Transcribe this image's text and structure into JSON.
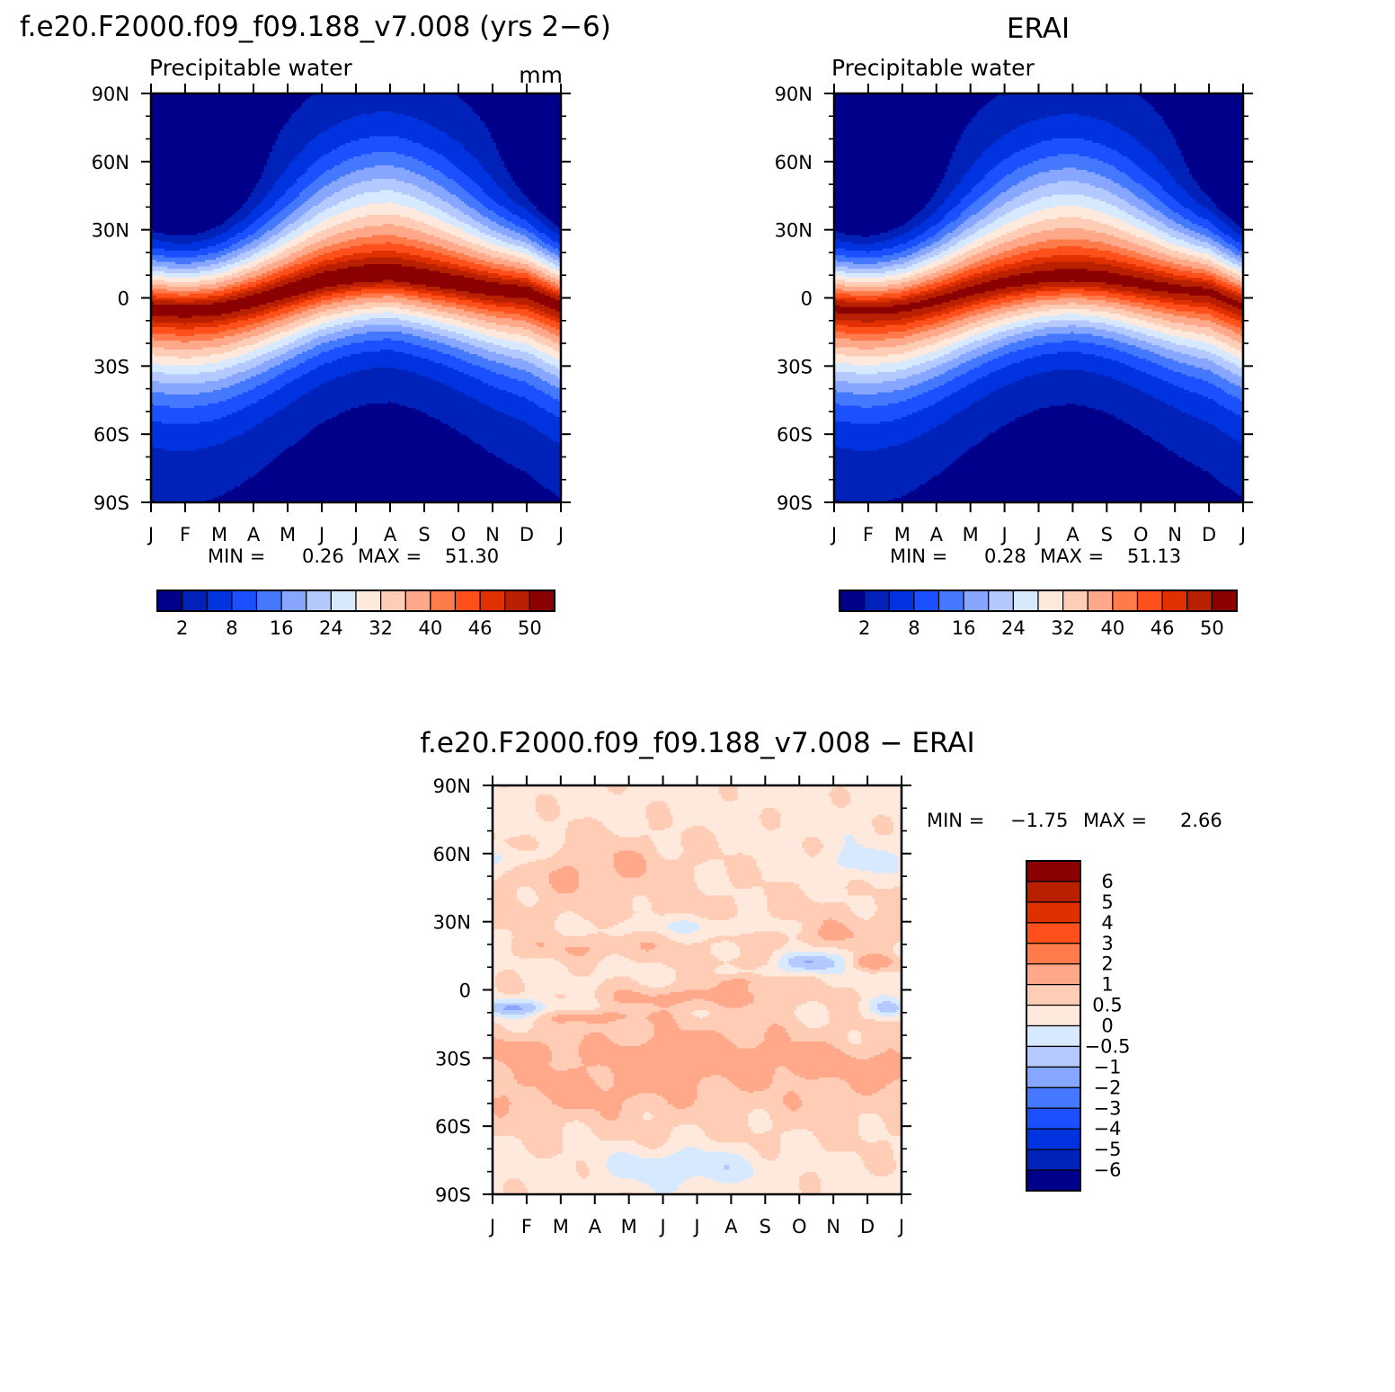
{
  "chart_data": [
    {
      "type": "heatmap",
      "title": "f.e20.F2000.f09_f09.188_v7.008 (yrs 2−6)",
      "subtitle": "Precipitable water",
      "units": "mm",
      "x_tick_labels": [
        "J",
        "F",
        "M",
        "A",
        "M",
        "J",
        "J",
        "A",
        "S",
        "O",
        "N",
        "D",
        "J"
      ],
      "y_tick_labels": [
        "90N",
        "60N",
        "30N",
        "0",
        "30S",
        "60S",
        "90S"
      ],
      "y_range": [
        -90,
        90
      ],
      "min_label": "MIN =",
      "min_value": "0.26",
      "max_label": "MAX =",
      "max_value": "51.30",
      "colorbar_labels": [
        "2",
        "8",
        "16",
        "24",
        "32",
        "40",
        "46",
        "50"
      ],
      "colorbar_colors": [
        "#00008b",
        "#0022b8",
        "#0033e0",
        "#1a50ff",
        "#4478ff",
        "#86a6ff",
        "#b3c9ff",
        "#d6e9ff",
        "#ffe9dc",
        "#ffcdb6",
        "#ffa88a",
        "#ff7b4c",
        "#ff4f1a",
        "#e03000",
        "#b82000",
        "#8b0000"
      ],
      "itcz_lat": [
        -4,
        -5,
        -4,
        -1,
        3,
        7,
        9,
        10,
        8,
        6,
        4,
        3,
        -3
      ]
    },
    {
      "type": "heatmap",
      "title": "ERAI",
      "subtitle": "Precipitable water",
      "x_tick_labels": [
        "J",
        "F",
        "M",
        "A",
        "M",
        "J",
        "J",
        "A",
        "S",
        "O",
        "N",
        "D",
        "J"
      ],
      "y_tick_labels": [
        "90N",
        "60N",
        "30N",
        "0",
        "30S",
        "60S",
        "90S"
      ],
      "y_range": [
        -90,
        90
      ],
      "min_label": "MIN =",
      "min_value": "0.28",
      "max_label": "MAX =",
      "max_value": "51.13",
      "colorbar_labels": [
        "2",
        "8",
        "16",
        "24",
        "32",
        "40",
        "46",
        "50"
      ],
      "colorbar_colors": [
        "#00008b",
        "#0022b8",
        "#0033e0",
        "#1a50ff",
        "#4478ff",
        "#86a6ff",
        "#b3c9ff",
        "#d6e9ff",
        "#ffe9dc",
        "#ffcdb6",
        "#ffa88a",
        "#ff7b4c",
        "#ff4f1a",
        "#e03000",
        "#b82000",
        "#8b0000"
      ],
      "itcz_lat": [
        -4,
        -5,
        -4,
        -1,
        3,
        6,
        8,
        9,
        8,
        6,
        4,
        3,
        -3
      ]
    },
    {
      "type": "heatmap",
      "title": "f.e20.F2000.f09_f09.188_v7.008 − ERAI",
      "x_tick_labels": [
        "J",
        "F",
        "M",
        "A",
        "M",
        "J",
        "J",
        "A",
        "S",
        "O",
        "N",
        "D",
        "J"
      ],
      "y_tick_labels": [
        "90N",
        "60N",
        "30N",
        "0",
        "30S",
        "60S",
        "90S"
      ],
      "y_range": [
        -90,
        90
      ],
      "min_label": "MIN =",
      "min_value": "−1.75",
      "max_label": "MAX =",
      "max_value": "2.66",
      "colorbar_labels": [
        "6",
        "5",
        "4",
        "3",
        "2",
        "1",
        "0.5",
        "0",
        "−0.5",
        "−1",
        "−2",
        "−3",
        "−4",
        "−5",
        "−6"
      ],
      "colorbar_colors": [
        "#8b0000",
        "#b82000",
        "#e03000",
        "#ff4f1a",
        "#ff7b4c",
        "#ffa88a",
        "#ffcdb6",
        "#ffe9dc",
        "#d6e9ff",
        "#b3c9ff",
        "#86a6ff",
        "#4478ff",
        "#1a50ff",
        "#0033e0",
        "#0022b8",
        "#00008b"
      ]
    }
  ]
}
